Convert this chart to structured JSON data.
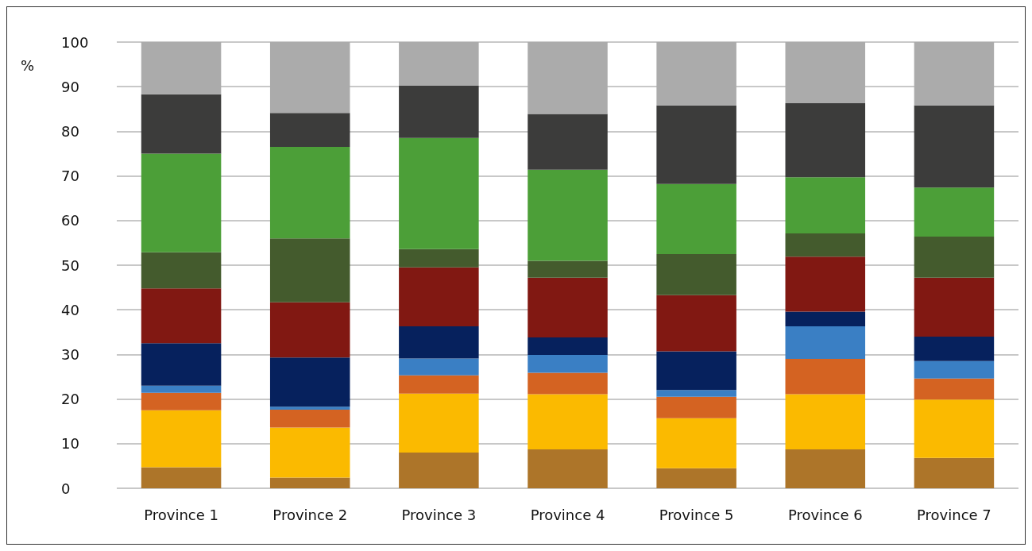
{
  "chart_data": {
    "type": "bar",
    "stacked": true,
    "ylabel": "%",
    "categories": [
      "Province 1",
      "Province 2",
      "Province 3",
      "Province 4",
      "Province 5",
      "Province 6",
      "Province 7"
    ],
    "series": [
      {
        "color": "#ad7529",
        "values": [
          4.7,
          2.4,
          8.0,
          8.7,
          4.5,
          8.7,
          6.8
        ]
      },
      {
        "color": "#fbba00",
        "values": [
          12.8,
          11.2,
          13.2,
          12.4,
          11.2,
          12.4,
          13.1
        ]
      },
      {
        "color": "#d46322",
        "values": [
          3.9,
          4.0,
          4.1,
          4.8,
          4.8,
          7.9,
          4.7
        ]
      },
      {
        "color": "#3a7fc4",
        "values": [
          1.6,
          0.7,
          3.8,
          4.0,
          1.5,
          7.3,
          3.9
        ]
      },
      {
        "color": "#06215d",
        "values": [
          9.5,
          11.0,
          7.2,
          3.9,
          8.7,
          3.3,
          5.5
        ]
      },
      {
        "color": "#811812",
        "values": [
          12.3,
          12.4,
          13.2,
          13.4,
          12.6,
          12.3,
          13.2
        ]
      },
      {
        "color": "#445b2d",
        "values": [
          8.1,
          14.3,
          4.1,
          3.8,
          9.2,
          5.2,
          9.2
        ]
      },
      {
        "color": "#4c9f38",
        "values": [
          22.1,
          20.5,
          24.9,
          20.4,
          15.7,
          12.6,
          11.0
        ]
      },
      {
        "color": "#3c3c3b",
        "values": [
          13.3,
          7.6,
          11.7,
          12.5,
          17.6,
          16.6,
          18.4
        ]
      },
      {
        "color": "#ababab",
        "values": [
          11.7,
          15.9,
          9.8,
          16.1,
          14.2,
          13.7,
          14.2
        ]
      }
    ],
    "ylim": [
      0,
      100
    ],
    "yticks": [
      0,
      10,
      20,
      30,
      40,
      50,
      60,
      70,
      80,
      90,
      100
    ],
    "grid": "y"
  }
}
